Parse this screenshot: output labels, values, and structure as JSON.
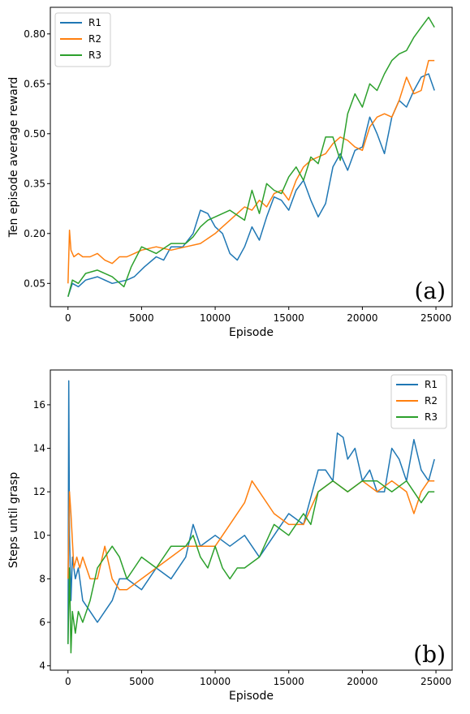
{
  "colors": {
    "R1": "#1f77b4",
    "R2": "#ff7f0e",
    "R3": "#2ca02c"
  },
  "chart_data": [
    {
      "type": "line",
      "panel_label": "(a)",
      "xlabel": "Episode",
      "ylabel": "Ten episode average reward",
      "xlim": [
        -1200,
        26100
      ],
      "ylim": [
        -0.02,
        0.88
      ],
      "xticks": [
        0,
        5000,
        10000,
        15000,
        20000,
        25000
      ],
      "xtick_labels": [
        "0",
        "5000",
        "10000",
        "15000",
        "20000",
        "25000"
      ],
      "yticks": [
        0.05,
        0.2,
        0.35,
        0.5,
        0.65,
        0.8
      ],
      "ytick_labels": [
        "0.05",
        "0.20",
        "0.35",
        "0.50",
        "0.65",
        "0.80"
      ],
      "legend_position": "top-left",
      "grid": false,
      "series": [
        {
          "name": "R1",
          "x": [
            0,
            300,
            700,
            1200,
            2000,
            3000,
            4000,
            4500,
            5200,
            6000,
            6500,
            7000,
            7800,
            8500,
            9000,
            9500,
            10000,
            10500,
            11000,
            11500,
            12000,
            12500,
            13000,
            13500,
            14000,
            14500,
            15000,
            15500,
            16000,
            16500,
            17000,
            17500,
            18000,
            18500,
            19000,
            19500,
            20000,
            20500,
            21000,
            21500,
            22000,
            22500,
            23000,
            23500,
            24000,
            24500,
            24900
          ],
          "y": [
            0.01,
            0.05,
            0.04,
            0.06,
            0.07,
            0.05,
            0.06,
            0.07,
            0.1,
            0.13,
            0.12,
            0.16,
            0.16,
            0.2,
            0.27,
            0.26,
            0.22,
            0.2,
            0.14,
            0.12,
            0.16,
            0.22,
            0.18,
            0.25,
            0.31,
            0.3,
            0.27,
            0.33,
            0.36,
            0.3,
            0.25,
            0.29,
            0.4,
            0.44,
            0.39,
            0.45,
            0.46,
            0.55,
            0.5,
            0.44,
            0.55,
            0.6,
            0.58,
            0.63,
            0.67,
            0.68,
            0.63
          ]
        },
        {
          "name": "R2",
          "x": [
            0,
            100,
            200,
            400,
            700,
            1000,
            1500,
            2000,
            2500,
            3000,
            3500,
            4000,
            4500,
            5000,
            6000,
            7000,
            8000,
            9000,
            10000,
            10500,
            11000,
            11500,
            12000,
            12500,
            13000,
            13500,
            14000,
            14500,
            15000,
            15500,
            16000,
            16500,
            17000,
            17500,
            18000,
            18500,
            19000,
            19500,
            20000,
            20500,
            21000,
            21500,
            22000,
            22500,
            23000,
            23500,
            24000,
            24500,
            24900
          ],
          "y": [
            0.05,
            0.21,
            0.15,
            0.13,
            0.14,
            0.13,
            0.13,
            0.14,
            0.12,
            0.11,
            0.13,
            0.13,
            0.14,
            0.15,
            0.16,
            0.15,
            0.16,
            0.17,
            0.2,
            0.22,
            0.24,
            0.26,
            0.28,
            0.27,
            0.3,
            0.28,
            0.32,
            0.33,
            0.3,
            0.36,
            0.4,
            0.42,
            0.43,
            0.44,
            0.47,
            0.49,
            0.48,
            0.46,
            0.45,
            0.52,
            0.55,
            0.56,
            0.55,
            0.6,
            0.67,
            0.62,
            0.63,
            0.72,
            0.72
          ]
        },
        {
          "name": "R3",
          "x": [
            0,
            300,
            700,
            1200,
            2000,
            3000,
            3800,
            4300,
            5000,
            6000,
            7000,
            8000,
            8500,
            9000,
            9500,
            10000,
            11000,
            12000,
            12500,
            13000,
            13500,
            14000,
            14500,
            15000,
            15500,
            16000,
            16500,
            17000,
            17500,
            18000,
            18500,
            19000,
            19500,
            20000,
            20500,
            21000,
            21500,
            22000,
            22500,
            23000,
            23500,
            24000,
            24500,
            24900
          ],
          "y": [
            0.01,
            0.06,
            0.05,
            0.08,
            0.09,
            0.07,
            0.04,
            0.1,
            0.16,
            0.14,
            0.17,
            0.17,
            0.19,
            0.22,
            0.24,
            0.25,
            0.27,
            0.24,
            0.33,
            0.26,
            0.35,
            0.33,
            0.32,
            0.37,
            0.4,
            0.36,
            0.43,
            0.41,
            0.49,
            0.49,
            0.42,
            0.56,
            0.62,
            0.58,
            0.65,
            0.63,
            0.68,
            0.72,
            0.74,
            0.75,
            0.79,
            0.82,
            0.85,
            0.82
          ]
        }
      ]
    },
    {
      "type": "line",
      "panel_label": "(b)",
      "xlabel": "Episode",
      "ylabel": "Steps until grasp",
      "xlim": [
        -1200,
        26100
      ],
      "ylim": [
        3.8,
        17.6
      ],
      "xticks": [
        0,
        5000,
        10000,
        15000,
        20000,
        25000
      ],
      "xtick_labels": [
        "0",
        "5000",
        "10000",
        "15000",
        "20000",
        "25000"
      ],
      "yticks": [
        4,
        6,
        8,
        10,
        12,
        14,
        16
      ],
      "ytick_labels": [
        "4",
        "6",
        "8",
        "10",
        "12",
        "14",
        "16"
      ],
      "legend_position": "top-right",
      "grid": false,
      "series": [
        {
          "name": "R1",
          "x": [
            0,
            50,
            100,
            200,
            300,
            500,
            700,
            1000,
            1500,
            2000,
            2500,
            3000,
            3500,
            4000,
            5000,
            6000,
            7000,
            8000,
            8500,
            9000,
            10000,
            11000,
            12000,
            13000,
            14000,
            15000,
            16000,
            17000,
            17500,
            18000,
            18300,
            18700,
            19000,
            19500,
            20000,
            20500,
            21000,
            21500,
            22000,
            22500,
            23000,
            23500,
            24000,
            24500,
            24900
          ],
          "y": [
            5.0,
            17.1,
            10.0,
            7.0,
            9.0,
            8.0,
            8.5,
            7.0,
            6.5,
            6.0,
            6.5,
            7.0,
            8.0,
            8.0,
            7.5,
            8.5,
            8.0,
            9.0,
            10.5,
            9.5,
            10.0,
            9.5,
            10.0,
            9.0,
            10.0,
            11.0,
            10.5,
            13.0,
            13.0,
            12.5,
            14.7,
            14.5,
            13.5,
            14.0,
            12.5,
            13.0,
            12.0,
            12.0,
            14.0,
            13.5,
            12.5,
            14.4,
            13.0,
            12.5,
            13.5
          ]
        },
        {
          "name": "R2",
          "x": [
            0,
            100,
            200,
            400,
            600,
            800,
            1000,
            1500,
            2000,
            2500,
            3000,
            3500,
            4000,
            5000,
            6000,
            7000,
            8000,
            9000,
            10000,
            11000,
            12000,
            12500,
            13000,
            14000,
            15000,
            16000,
            17000,
            18000,
            19000,
            20000,
            21000,
            22000,
            23000,
            23500,
            24000,
            24500,
            24900
          ],
          "y": [
            8.0,
            12.0,
            11.0,
            8.5,
            9.0,
            8.5,
            9.0,
            8.0,
            8.0,
            9.5,
            8.0,
            7.5,
            7.5,
            8.0,
            8.5,
            9.0,
            9.5,
            9.5,
            9.5,
            10.5,
            11.5,
            12.5,
            12.0,
            11.0,
            10.5,
            10.5,
            12.0,
            12.5,
            12.0,
            12.5,
            12.0,
            12.5,
            12.0,
            11.0,
            12.0,
            12.5,
            12.5
          ]
        },
        {
          "name": "R3",
          "x": [
            0,
            100,
            200,
            300,
            500,
            700,
            1000,
            1500,
            2000,
            2500,
            3000,
            3500,
            4000,
            4500,
            5000,
            6000,
            7000,
            8000,
            8500,
            9000,
            9500,
            10000,
            10500,
            11000,
            11500,
            12000,
            13000,
            14000,
            15000,
            16000,
            16500,
            17000,
            18000,
            19000,
            20000,
            21000,
            22000,
            23000,
            24000,
            24500,
            24900
          ],
          "y": [
            5.0,
            8.5,
            4.6,
            6.5,
            5.5,
            6.5,
            6.0,
            7.0,
            8.5,
            9.0,
            9.5,
            9.0,
            8.0,
            8.5,
            9.0,
            8.5,
            9.5,
            9.5,
            10.0,
            9.0,
            8.5,
            9.5,
            8.5,
            8.0,
            8.5,
            8.5,
            9.0,
            10.5,
            10.0,
            11.0,
            10.5,
            12.0,
            12.5,
            12.0,
            12.5,
            12.5,
            12.0,
            12.5,
            11.5,
            12.0,
            12.0
          ]
        }
      ]
    }
  ]
}
